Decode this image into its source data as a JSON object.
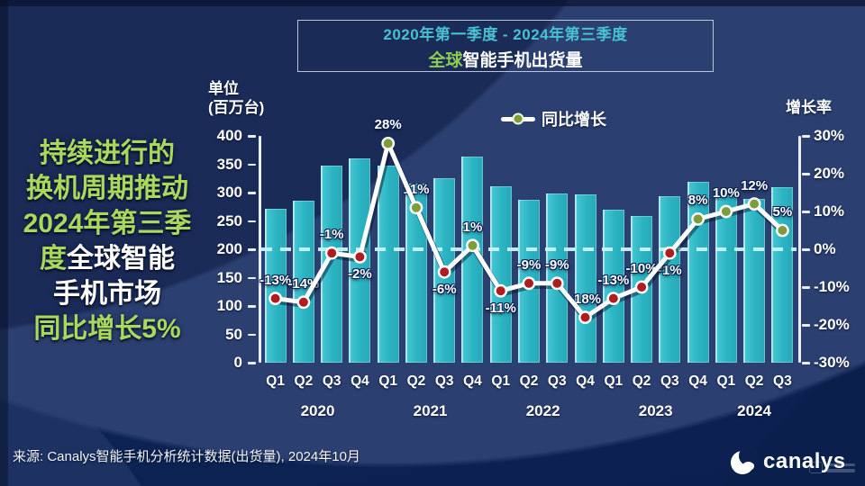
{
  "headline": {
    "lines": [
      [
        {
          "t": "持续进行的",
          "c": "green"
        }
      ],
      [
        {
          "t": "换机周期推动",
          "c": "green"
        }
      ],
      [
        {
          "t": "2024年第三季",
          "c": "green"
        }
      ],
      [
        {
          "t": "度",
          "c": "green"
        },
        {
          "t": "全球智能",
          "c": "white"
        }
      ],
      [
        {
          "t": "手机市场",
          "c": "white"
        }
      ],
      [
        {
          "t": "同比增长5%",
          "c": "green"
        }
      ]
    ]
  },
  "title_box": {
    "period": "2020年第一季度 - 2024年第三季度",
    "title_highlight": "全球",
    "title_rest": "智能手机出货量"
  },
  "footer": {
    "source": "来源: Canalys智能手机分析统计数据(出货量), 2024年10月",
    "logo_text": "canalys"
  },
  "colors": {
    "bar": "#2db5c4",
    "growth_line": "#ffffff",
    "dot_positive": "#7f9c3a",
    "dot_negative": "#b01d20",
    "accent_green": "#a8d85e",
    "accent_teal": "#46c2d2",
    "zero_dash": "#c9f3f6"
  },
  "chart_data": {
    "type": "combo_bar_line",
    "title": "全球智能手机出货量",
    "subtitle": "2020年第一季度 - 2024年第三季度",
    "legend_label": "同比增长",
    "quarters": [
      "Q1",
      "Q2",
      "Q3",
      "Q4",
      "Q1",
      "Q2",
      "Q3",
      "Q4",
      "Q1",
      "Q2",
      "Q3",
      "Q4",
      "Q1",
      "Q2",
      "Q3",
      "Q4",
      "Q1",
      "Q2",
      "Q3"
    ],
    "year_groups": [
      {
        "label": "2020",
        "count": 4
      },
      {
        "label": "2021",
        "count": 4
      },
      {
        "label": "2022",
        "count": 4
      },
      {
        "label": "2023",
        "count": 4
      },
      {
        "label": "2024",
        "count": 3
      }
    ],
    "bars": {
      "name": "智能手机出货量",
      "unit": "百万台",
      "values": [
        272,
        285,
        348,
        360,
        347,
        316,
        325,
        363,
        311,
        287,
        298,
        297,
        270,
        258,
        293,
        319,
        296,
        289,
        310
      ]
    },
    "growth": {
      "name": "同比增长",
      "unit": "%",
      "values": [
        -13,
        -14,
        -1,
        -2,
        28,
        11,
        -6,
        1,
        -11,
        -9,
        -9,
        -18,
        -13,
        -10,
        -1,
        8,
        10,
        12,
        5
      ],
      "labels": [
        "-13%",
        "-14%",
        "-1%",
        "-2%",
        "28%",
        "11%",
        "-6%",
        "1%",
        "-11%",
        "-9%",
        "-9%",
        "-18%",
        "-13%",
        "-10%",
        "-1%",
        "8%",
        "10%",
        "12%",
        "5%"
      ],
      "label_position": [
        "above",
        "above",
        "above",
        "below",
        "above",
        "above",
        "below",
        "above",
        "below",
        "above",
        "above",
        "above",
        "above",
        "above",
        "below",
        "above",
        "above",
        "above",
        "above"
      ]
    },
    "left_axis": {
      "title_line1": "单位",
      "title_line2": "(百万台)",
      "min": 0,
      "max": 400,
      "step": 50,
      "ticks": [
        "400",
        "350",
        "300",
        "250",
        "200",
        "150",
        "100",
        "50",
        "0"
      ]
    },
    "right_axis": {
      "title": "增长率",
      "min": -30,
      "max": 30,
      "step": 10,
      "ticks": [
        "30%",
        "20%",
        "10%",
        "0%",
        "-10%",
        "-20%",
        "-30%"
      ]
    },
    "zero_reference_line": true,
    "legend_position": "top"
  }
}
